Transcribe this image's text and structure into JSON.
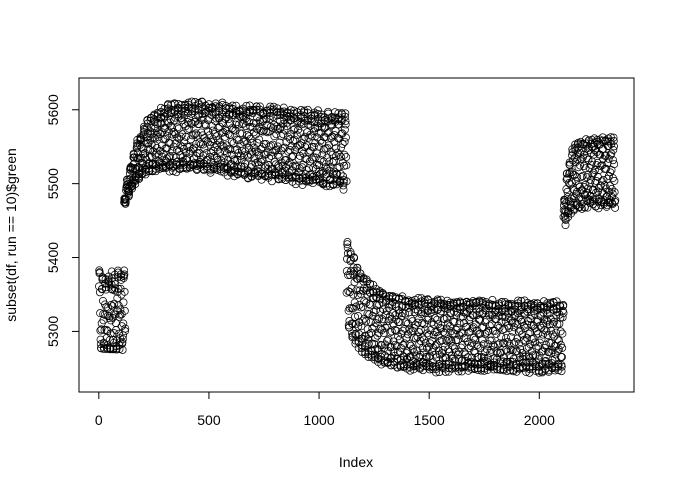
{
  "chart_data": {
    "type": "scatter",
    "xlabel": "Index",
    "ylabel": "subset(df, run == 10)$green",
    "xlim": [
      -90,
      2430
    ],
    "ylim": [
      5218,
      5643
    ],
    "x_ticks": [
      0,
      500,
      1000,
      1500,
      2000
    ],
    "y_ticks": [
      5300,
      5400,
      5500,
      5600
    ],
    "x_tick_labels": [
      "0",
      "500",
      "1000",
      "1500",
      "2000"
    ],
    "y_tick_labels": [
      "5300",
      "5400",
      "5500",
      "5600"
    ],
    "segments": [
      {
        "x_start": 1,
        "x_end": 120,
        "y_low": 5275,
        "y_high": 5385
      },
      {
        "x_start": 115,
        "x_end": 1125,
        "y_low": 5470,
        "y_high": 5625,
        "shape": "rising plateau, top ~5620, bottom ~5510 declining to ~5480"
      },
      {
        "x_start": 1125,
        "x_end": 2110,
        "y_low": 5237,
        "y_high": 5428,
        "shape": "decay from ~5425 to band 5240-5345"
      },
      {
        "x_start": 2110,
        "x_end": 2345,
        "y_low": 5430,
        "y_high": 5570
      }
    ]
  }
}
